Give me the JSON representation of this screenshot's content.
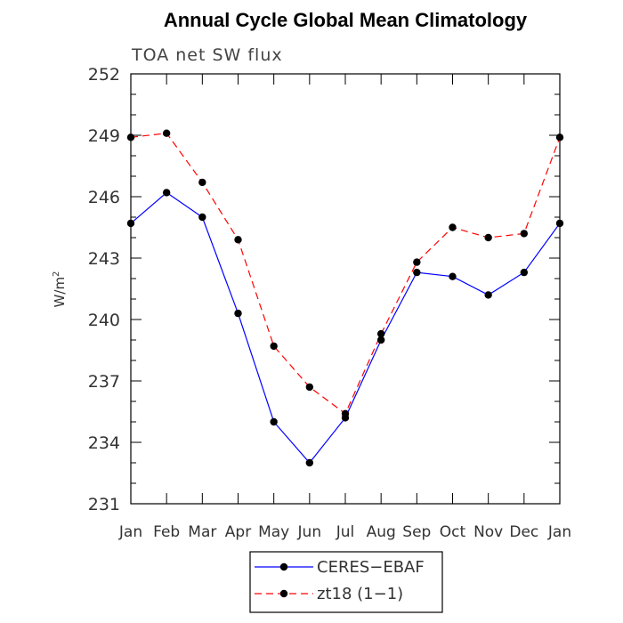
{
  "chart_data": {
    "type": "line",
    "title": "Annual Cycle Global Mean Climatology",
    "subtitle": "TOA net SW flux",
    "ylabel_main": "W/m",
    "ylabel_sup": "2",
    "xlabel": "",
    "categories": [
      "Jan",
      "Feb",
      "Mar",
      "Apr",
      "May",
      "Jun",
      "Jul",
      "Aug",
      "Sep",
      "Oct",
      "Nov",
      "Dec",
      "Jan"
    ],
    "ylim": [
      231,
      252
    ],
    "yticks": [
      231,
      234,
      237,
      240,
      243,
      246,
      249,
      252
    ],
    "grid": false,
    "legend_position": "bottom-center",
    "series": [
      {
        "name": "CERES−EBAF",
        "color": "#0000ff",
        "dash": "solid",
        "values": [
          244.7,
          246.2,
          245.0,
          240.3,
          235.0,
          233.0,
          235.2,
          239.0,
          242.3,
          242.1,
          241.2,
          242.3,
          244.7
        ]
      },
      {
        "name": "zt18 (1−1)",
        "color": "#ff0000",
        "dash": "dashed",
        "values": [
          248.9,
          249.1,
          246.7,
          243.9,
          238.7,
          236.7,
          235.4,
          239.3,
          242.8,
          244.5,
          244.0,
          244.2,
          248.9
        ]
      }
    ]
  }
}
